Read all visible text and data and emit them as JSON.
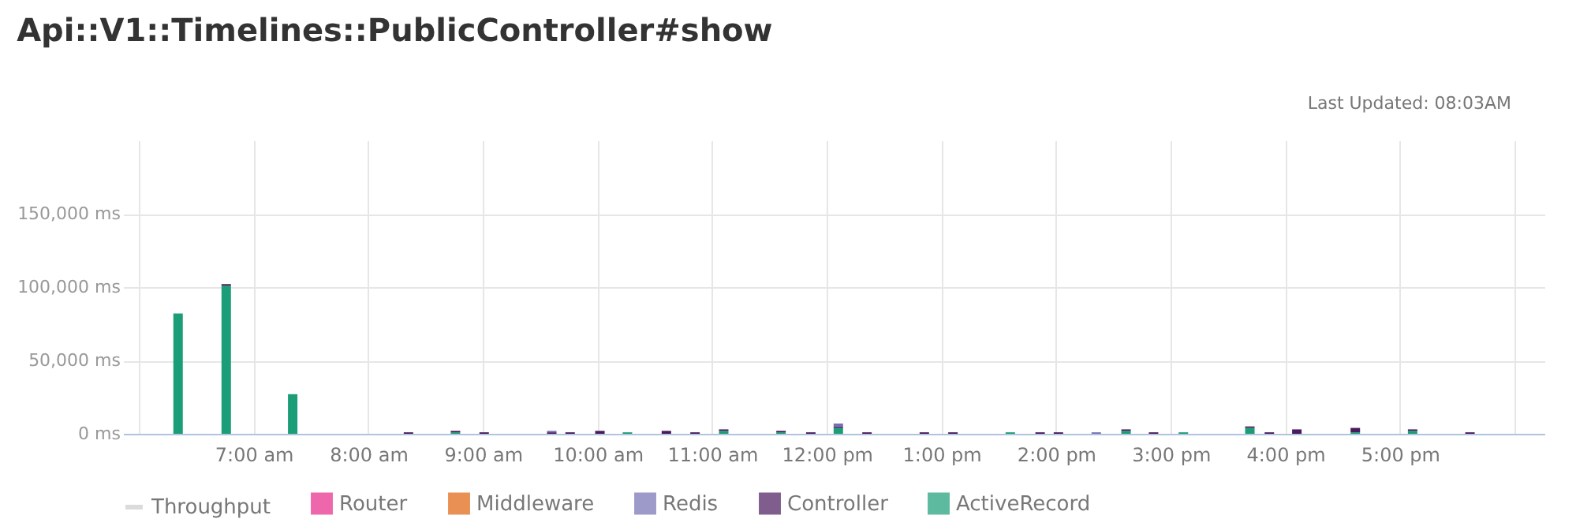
{
  "chart_data": {
    "type": "bar",
    "stacked": true,
    "title": "Api::V1::Timelines::PublicController#show",
    "annotations": [
      "Last Updated: 08:03AM"
    ],
    "x": [
      6.34,
      6.76,
      7.34,
      8.35,
      8.76,
      9.01,
      9.6,
      9.76,
      10.02,
      10.26,
      10.6,
      10.85,
      11.1,
      11.6,
      11.86,
      12.1,
      12.35,
      12.85,
      13.1,
      13.6,
      13.86,
      14.02,
      14.35,
      14.61,
      14.85,
      15.11,
      15.69,
      15.86,
      16.1,
      16.61,
      17.11,
      17.61
    ],
    "series": [
      {
        "name": "ActiveRecord",
        "color": "#1b9e77",
        "values": [
          82000,
          101000,
          27000,
          null,
          1000,
          null,
          null,
          null,
          null,
          1000,
          null,
          null,
          2000,
          1000,
          null,
          4000,
          null,
          null,
          null,
          1000,
          null,
          null,
          null,
          2000,
          null,
          1000,
          4000,
          null,
          null,
          1000,
          2000,
          null
        ]
      },
      {
        "name": "Controller",
        "color": "#4a1a5e",
        "values": [
          null,
          1000,
          null,
          1000,
          1000,
          1000,
          1000,
          1000,
          2000,
          null,
          2000,
          1000,
          1000,
          1000,
          1000,
          1000,
          1000,
          1000,
          1000,
          null,
          1000,
          1000,
          null,
          1000,
          1000,
          null,
          1000,
          1000,
          3000,
          3000,
          1000,
          1000
        ]
      },
      {
        "name": "Redis",
        "color": "#7570b3",
        "values": [
          null,
          null,
          null,
          null,
          null,
          null,
          1000,
          null,
          null,
          null,
          null,
          null,
          null,
          null,
          null,
          2000,
          null,
          null,
          null,
          null,
          null,
          null,
          1000,
          null,
          null,
          null,
          null,
          null,
          null,
          null,
          null,
          null
        ]
      },
      {
        "name": "Middleware",
        "color": "#e0620d",
        "values": [
          null,
          null,
          null,
          null,
          null,
          null,
          null,
          null,
          null,
          null,
          null,
          null,
          null,
          null,
          null,
          null,
          null,
          null,
          null,
          null,
          null,
          null,
          null,
          null,
          null,
          null,
          null,
          null,
          null,
          null,
          null,
          null
        ]
      },
      {
        "name": "Router",
        "color": "#e8288a",
        "values": [
          null,
          null,
          null,
          null,
          null,
          null,
          null,
          null,
          null,
          null,
          null,
          null,
          null,
          null,
          null,
          null,
          null,
          null,
          null,
          null,
          null,
          null,
          null,
          null,
          null,
          null,
          null,
          null,
          null,
          null,
          null,
          null
        ]
      },
      {
        "name": "Throughput",
        "type": "line",
        "color": "#cccccc",
        "values": [
          null,
          null,
          null,
          null,
          null,
          null,
          null,
          null,
          null,
          null,
          null,
          null,
          null,
          null,
          null,
          null,
          null,
          null,
          null,
          null,
          null,
          null,
          null,
          null,
          null,
          null,
          null,
          null,
          null,
          null,
          null,
          null
        ]
      }
    ],
    "xlim": [
      5.86,
      18.26
    ],
    "xticks": [
      {
        "value": 6,
        "label": null
      },
      {
        "value": 7,
        "label": "7:00 am"
      },
      {
        "value": 8,
        "label": "8:00 am"
      },
      {
        "value": 9,
        "label": "9:00 am"
      },
      {
        "value": 10,
        "label": "10:00 am"
      },
      {
        "value": 11,
        "label": "11:00 am"
      },
      {
        "value": 12,
        "label": "12:00 pm"
      },
      {
        "value": 13,
        "label": "1:00 pm"
      },
      {
        "value": 14,
        "label": "2:00 pm"
      },
      {
        "value": 15,
        "label": "3:00 pm"
      },
      {
        "value": 16,
        "label": "4:00 pm"
      },
      {
        "value": 17,
        "label": "5:00 pm"
      },
      {
        "value": 18,
        "label": null
      }
    ],
    "ylim": [
      0,
      200000
    ],
    "yticks": [
      {
        "value": 0,
        "label": "0 ms"
      },
      {
        "value": 50000,
        "label": "50,000 ms"
      },
      {
        "value": 100000,
        "label": "100,000 ms"
      },
      {
        "value": 150000,
        "label": "150,000 ms"
      }
    ],
    "grid": true,
    "legend": "bottom"
  }
}
